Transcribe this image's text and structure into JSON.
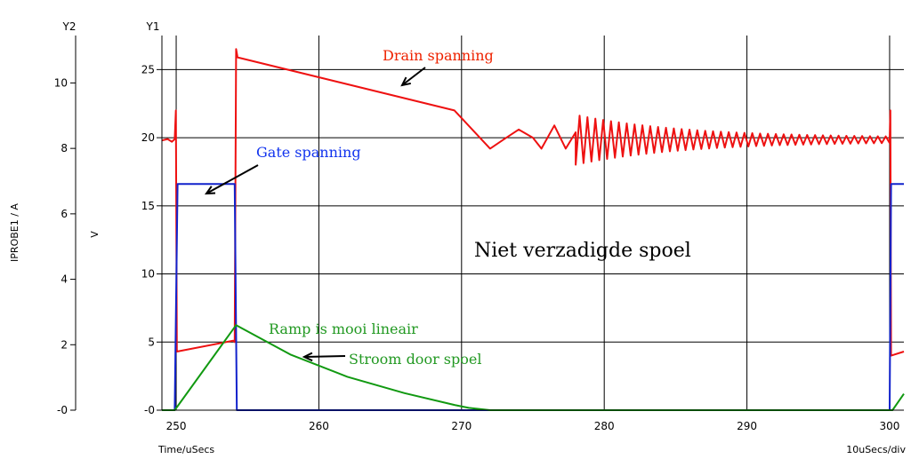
{
  "chart_data": {
    "type": "line",
    "x_axis": {
      "label": "Time/uSecs",
      "scale_note": "10uSecs/div",
      "ticks": [
        250,
        260,
        270,
        280,
        290,
        300
      ],
      "range": [
        249,
        301
      ]
    },
    "y1_axis": {
      "title": "Y1",
      "label": "V",
      "ticks": [
        25,
        20,
        15,
        10,
        5,
        0
      ],
      "tick_labels": [
        "25",
        "20",
        "15",
        "10",
        "5",
        "-0"
      ],
      "range": [
        0,
        27.5
      ]
    },
    "y2_axis": {
      "title": "Y2",
      "label": "IPROBE1 / A",
      "ticks": [
        10,
        8,
        6,
        4,
        2,
        0
      ],
      "tick_labels": [
        "10",
        "8",
        "6",
        "4",
        "2",
        "-0"
      ],
      "range": [
        0,
        11.45
      ]
    },
    "annotations": {
      "drain": "Drain spanning",
      "gate": "Gate spanning",
      "ramp": "Ramp is mooi lineair",
      "stroom": "Stroom door spoel",
      "center": "Niet verzadigde spoel"
    },
    "series": [
      {
        "name": "Drain spanning",
        "axis": "y1",
        "color": "#ee1111",
        "points": [
          [
            249.0,
            19.8
          ],
          [
            249.4,
            19.9
          ],
          [
            249.7,
            19.7
          ],
          [
            249.9,
            19.9
          ],
          [
            249.98,
            22.0
          ],
          [
            250.05,
            4.3
          ],
          [
            254.0,
            5.1
          ],
          [
            254.1,
            5.0
          ],
          [
            254.15,
            16.0
          ],
          [
            254.2,
            26.5
          ],
          [
            254.3,
            25.9
          ],
          [
            269.5,
            22.0
          ],
          [
            272.0,
            19.2
          ],
          [
            273.0,
            19.9
          ],
          [
            274.0,
            20.6
          ],
          [
            275.0,
            20.0
          ],
          [
            275.6,
            19.2
          ],
          [
            276.5,
            20.9
          ],
          [
            277.3,
            19.2
          ],
          [
            278.0,
            20.4
          ]
        ],
        "ringing": {
          "x_start": 275.6,
          "x_end": 300.0,
          "center": 19.85,
          "amp_start": 2.3,
          "amp_end": 0.15,
          "period": 0.55
        }
      },
      {
        "name": "Gate spanning",
        "axis": "y1",
        "color": "#1122cc",
        "points": [
          [
            249.0,
            0
          ],
          [
            249.9,
            0
          ],
          [
            250.1,
            16.6
          ],
          [
            254.1,
            16.6
          ],
          [
            254.25,
            0
          ],
          [
            300.0,
            0
          ],
          [
            300.1,
            16.6
          ],
          [
            301.0,
            16.6
          ]
        ]
      },
      {
        "name": "Stroom door spoel",
        "axis": "y2",
        "color": "#119911",
        "points": [
          [
            249.0,
            0
          ],
          [
            249.9,
            0
          ],
          [
            254.2,
            2.6
          ],
          [
            258.0,
            1.7
          ],
          [
            262.0,
            1.02
          ],
          [
            266.0,
            0.52
          ],
          [
            269.5,
            0.16
          ],
          [
            270.5,
            0.07
          ],
          [
            272.0,
            0
          ],
          [
            300.2,
            0
          ],
          [
            301.0,
            0.5
          ]
        ]
      }
    ]
  }
}
